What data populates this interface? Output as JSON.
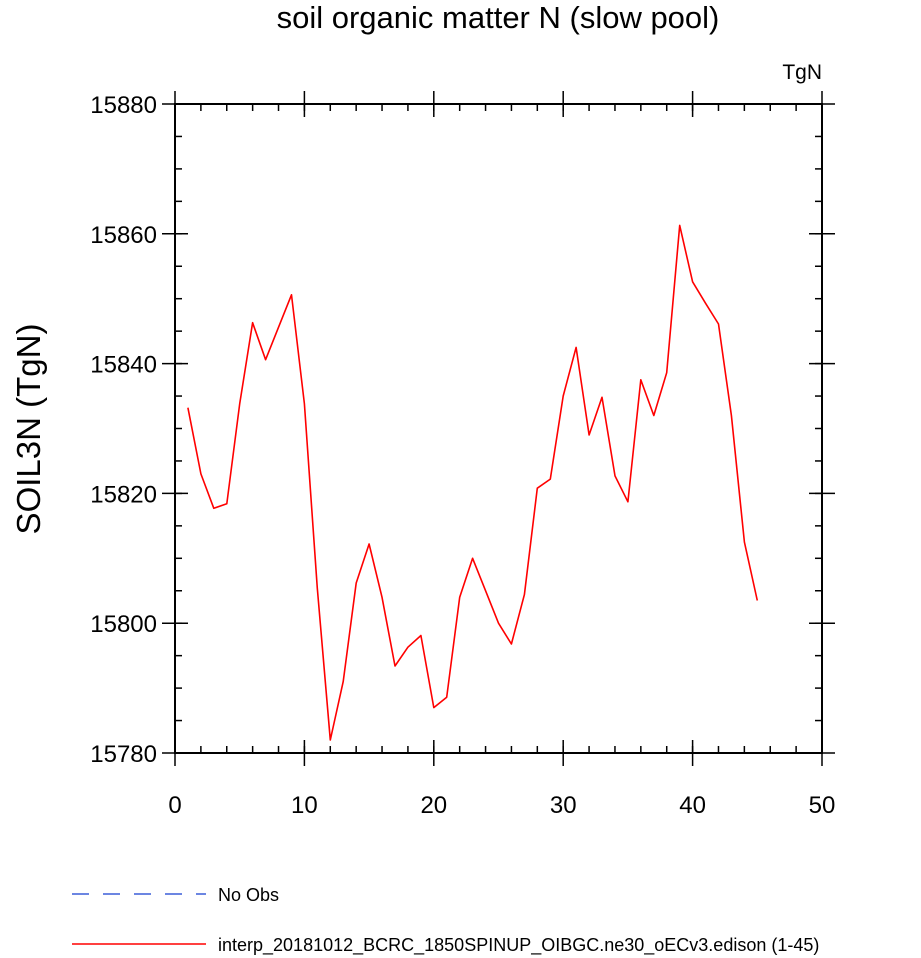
{
  "chart_data": {
    "type": "line",
    "title": "soil organic matter N (slow pool)",
    "units_label": "TgN",
    "ylabel": "SOIL3N  (TgN)",
    "xlabel": "",
    "xlim": [
      0,
      50
    ],
    "ylim": [
      15780,
      15880
    ],
    "x_ticks": [
      0,
      10,
      20,
      30,
      40,
      50
    ],
    "y_ticks": [
      15780,
      15800,
      15820,
      15840,
      15860,
      15880
    ],
    "x_minor_step": 2,
    "y_minor_step": 5,
    "series": [
      {
        "name": "interp_20181012_BCRC_1850SPINUP_OIBGC.ne30_oECv3.edison (1-45)",
        "color": "#ff0000",
        "style": "solid",
        "x": [
          1,
          2,
          3,
          4,
          5,
          6,
          7,
          8,
          9,
          10,
          11,
          12,
          13,
          14,
          15,
          16,
          17,
          18,
          19,
          20,
          21,
          22,
          23,
          24,
          25,
          26,
          27,
          28,
          29,
          30,
          31,
          32,
          33,
          34,
          35,
          36,
          37,
          38,
          39,
          40,
          41,
          42,
          43,
          44,
          45
        ],
        "values": [
          15833.2,
          15823.0,
          15817.7,
          15818.4,
          15833.8,
          15846.3,
          15840.6,
          15845.6,
          15850.6,
          15833.8,
          15805.4,
          15782.0,
          15791.0,
          15806.2,
          15812.2,
          15804.0,
          15793.4,
          15796.3,
          15798.1,
          15787.0,
          15788.6,
          15804.0,
          15810.0,
          15805.0,
          15800.0,
          15796.8,
          15804.4,
          15820.8,
          15822.2,
          15835.0,
          15842.5,
          15829.0,
          15834.8,
          15822.7,
          15818.7,
          15837.5,
          15832.0,
          15838.6,
          15861.3,
          15852.6,
          15849.3,
          15846.1,
          15832.0,
          15812.5,
          15803.5
        ]
      }
    ],
    "legend": [
      {
        "label": "No Obs",
        "color": "#3b5fd9",
        "style": "dashed"
      },
      {
        "label": "interp_20181012_BCRC_1850SPINUP_OIBGC.ne30_oECv3.edison (1-45)",
        "color": "#ff0000",
        "style": "solid"
      }
    ],
    "legend_position": "bottom-left",
    "grid": false
  }
}
